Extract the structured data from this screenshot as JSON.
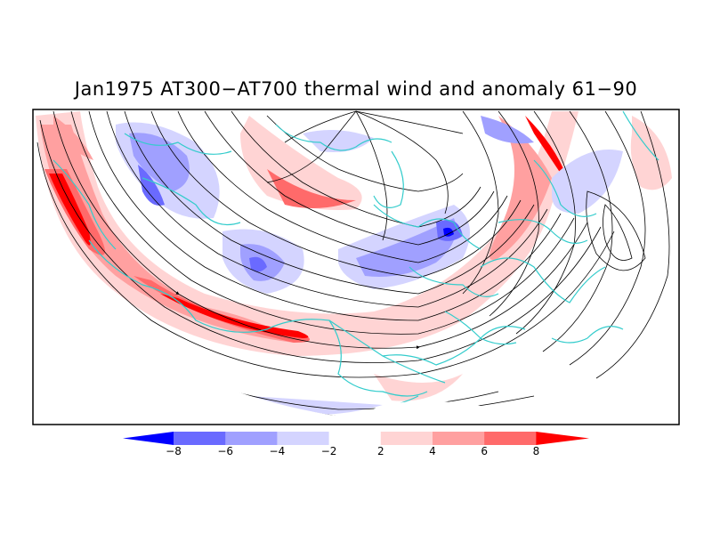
{
  "title": "Jan1975 AT300−AT700 thermal wind and anomaly 61−90",
  "colorbar": {
    "labels": [
      "−8",
      "−6",
      "−4",
      "−2",
      "2",
      "4",
      "6",
      "8"
    ],
    "colors": [
      "#0000ff",
      "#6a6aff",
      "#a0a0ff",
      "#d4d4ff",
      "#ffffff",
      "#ffd4d4",
      "#ffa0a0",
      "#ff6a6a",
      "#ff0000"
    ]
  },
  "colors": {
    "coastline": "#33cccc",
    "streamline": "#000000",
    "frame": "#000000"
  }
}
